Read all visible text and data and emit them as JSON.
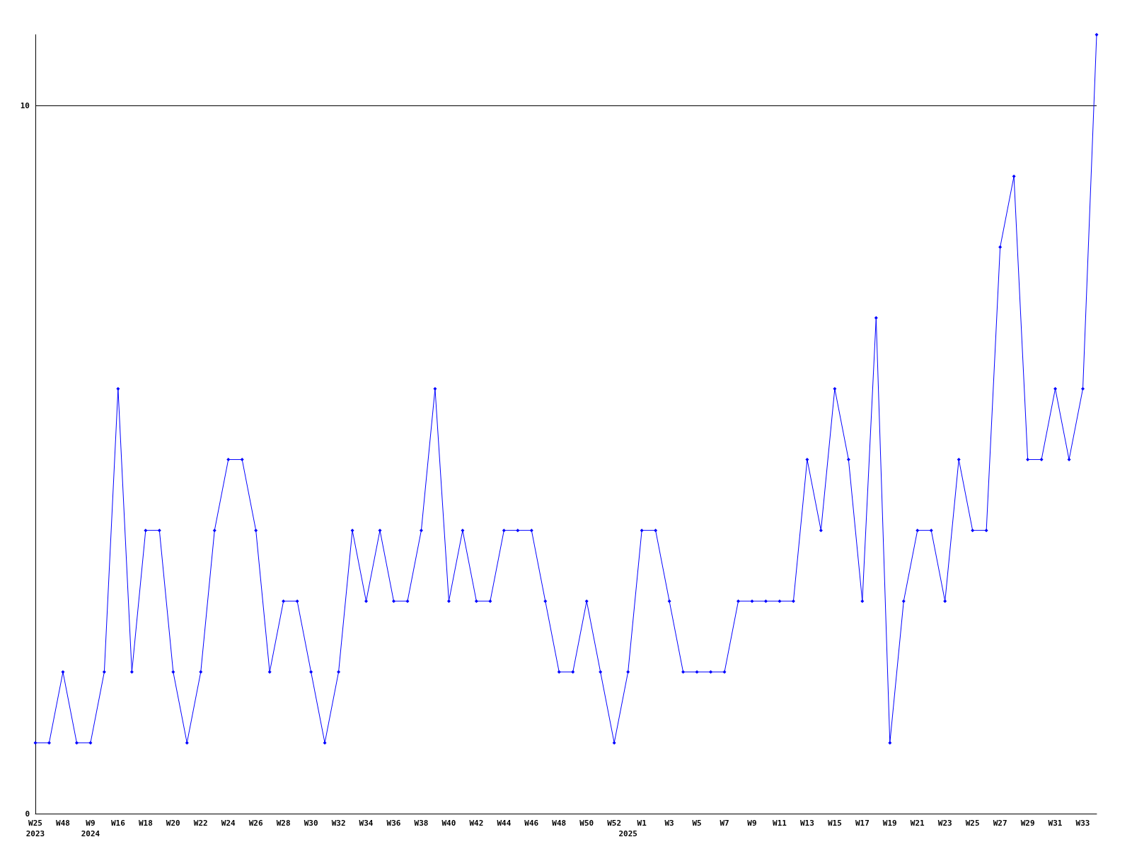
{
  "chart_data": {
    "type": "line",
    "categories": [
      "W25\n2023",
      null,
      "W48",
      null,
      "W9\n2024",
      null,
      "W16",
      null,
      "W18",
      null,
      "W20",
      null,
      "W22",
      null,
      "W24",
      null,
      "W26",
      null,
      "W28",
      null,
      "W30",
      null,
      "W32",
      null,
      "W34",
      null,
      "W36",
      null,
      "W38",
      null,
      "W40",
      null,
      "W42",
      null,
      "W44",
      null,
      "W46",
      null,
      "W48",
      null,
      "W50",
      null,
      "W52",
      "\n2025",
      "W1",
      null,
      "W3",
      null,
      "W5",
      null,
      "W7",
      null,
      "W9",
      null,
      "W11",
      null,
      "W13",
      null,
      "W15",
      null,
      "W17",
      null,
      "W19",
      null,
      "W21",
      null,
      "W23",
      null,
      "W25",
      null,
      "W27",
      null,
      "W29",
      null,
      "W31",
      null,
      "W33",
      null
    ],
    "series": [
      {
        "color": "#0000ff",
        "values": [
          1,
          1,
          2,
          1,
          1,
          2,
          6,
          2,
          4,
          4,
          2,
          1,
          2,
          4,
          5,
          5,
          4,
          2,
          3,
          3,
          2,
          1,
          2,
          4,
          3,
          4,
          3,
          3,
          4,
          6,
          3,
          4,
          3,
          3,
          4,
          4,
          4,
          3,
          2,
          2,
          3,
          2,
          1,
          2,
          4,
          4,
          3,
          2,
          2,
          2,
          2,
          3,
          3,
          3,
          3,
          3,
          5,
          4,
          6,
          5,
          3,
          7,
          1,
          3,
          4,
          4,
          3,
          5,
          4,
          4,
          8,
          9,
          5,
          5,
          6,
          5,
          6,
          11
        ]
      }
    ],
    "ylim": [
      0,
      11
    ],
    "yticks": [
      0,
      10
    ],
    "grid": "y",
    "marker": "diamond",
    "line_style": "solid"
  }
}
